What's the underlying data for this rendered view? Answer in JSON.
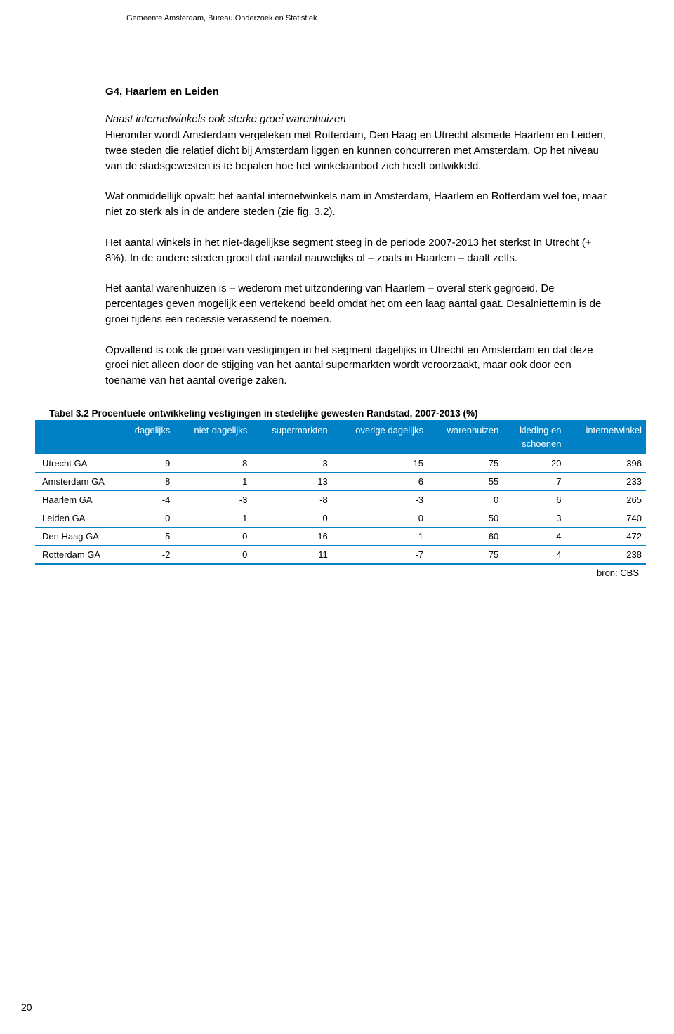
{
  "header": {
    "text": "Gemeente Amsterdam, Bureau Onderzoek en Statistiek"
  },
  "section": {
    "title": "G4, Haarlem en Leiden",
    "subtitle": "Naast internetwinkels ook sterke groei warenhuizen",
    "paragraphs": [
      "Hieronder wordt Amsterdam vergeleken met Rotterdam, Den Haag en Utrecht alsmede Haarlem en Leiden, twee steden die relatief dicht bij Amsterdam liggen en kunnen concurreren met Amsterdam. Op het niveau van de stadsgewesten is te bepalen hoe het winkelaanbod zich heeft ontwikkeld.",
      "Wat onmiddellijk opvalt: het aantal internetwinkels nam in Amsterdam, Haarlem en Rotterdam wel toe, maar niet zo sterk als in de andere steden (zie fig. 3.2).",
      "Het aantal winkels in het niet-dagelijkse segment steeg in de periode 2007-2013 het sterkst In Utrecht (+ 8%). In de andere steden groeit dat aantal nauwelijks of – zoals in Haarlem – daalt zelfs.",
      "Het aantal warenhuizen is – wederom met uitzondering van Haarlem – overal sterk gegroeid. De percentages geven mogelijk een vertekend beeld omdat het om een laag aantal gaat. Desalniettemin is de groei tijdens een recessie verassend te noemen.",
      "Opvallend is ook de groei van vestigingen in het segment dagelijks in Utrecht en Amsterdam en dat deze groei niet alleen door de stijging van het aantal supermarkten wordt veroorzaakt, maar ook door een toename van het aantal overige zaken."
    ]
  },
  "table": {
    "caption": "Tabel 3.2  Procentuele ontwikkeling vestigingen in stedelijke gewesten Randstad, 2007-2013 (%)",
    "header_bg": "#0081c6",
    "header_fg": "#ffffff",
    "row_border_color": "#0081c6",
    "columns": [
      {
        "label_lines": [
          "",
          ""
        ]
      },
      {
        "label_lines": [
          "dagelijks",
          ""
        ]
      },
      {
        "label_lines": [
          "niet-dagelijks",
          ""
        ]
      },
      {
        "label_lines": [
          "supermarkten",
          ""
        ]
      },
      {
        "label_lines": [
          "overige dagelijks",
          ""
        ]
      },
      {
        "label_lines": [
          "warenhuizen",
          ""
        ]
      },
      {
        "label_lines": [
          "kleding en",
          "schoenen"
        ]
      },
      {
        "label_lines": [
          "internetwinkel",
          ""
        ]
      }
    ],
    "rows": [
      {
        "label": "Utrecht GA",
        "values": [
          "9",
          "8",
          "-3",
          "15",
          "75",
          "20",
          "396"
        ]
      },
      {
        "label": "Amsterdam GA",
        "values": [
          "8",
          "1",
          "13",
          "6",
          "55",
          "7",
          "233"
        ]
      },
      {
        "label": "Haarlem GA",
        "values": [
          "-4",
          "-3",
          "-8",
          "-3",
          "0",
          "6",
          "265"
        ]
      },
      {
        "label": "Leiden GA",
        "values": [
          "0",
          "1",
          "0",
          "0",
          "50",
          "3",
          "740"
        ]
      },
      {
        "label": "Den Haag GA",
        "values": [
          "5",
          "0",
          "16",
          "1",
          "60",
          "4",
          "472"
        ]
      },
      {
        "label": "Rotterdam GA",
        "values": [
          "-2",
          "0",
          "11",
          "-7",
          "75",
          "4",
          "238"
        ]
      }
    ],
    "source": "bron: CBS"
  },
  "page_number": "20"
}
